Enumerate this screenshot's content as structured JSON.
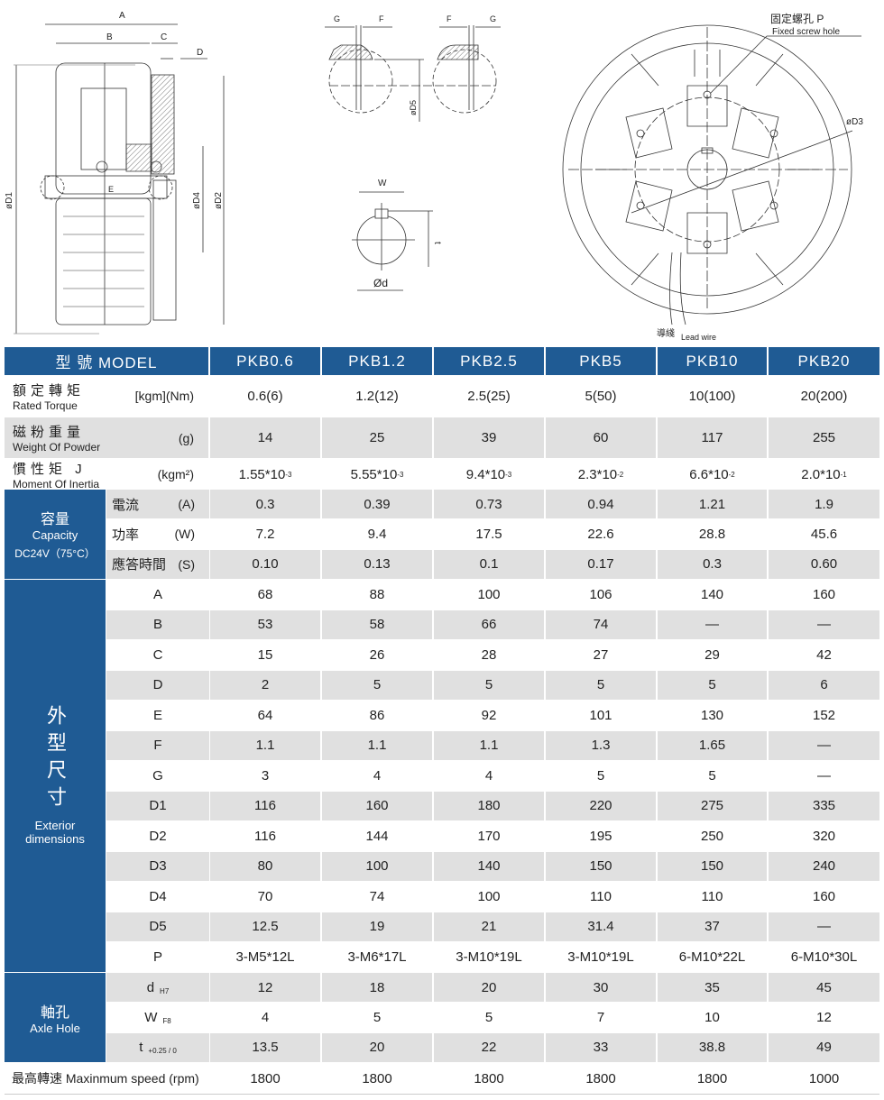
{
  "drawing_labels": {
    "A": "A",
    "B": "B",
    "C": "C",
    "D": "D",
    "E": "E",
    "D1": "øD1",
    "D2": "øD2",
    "D4": "øD4",
    "D5": "øD5",
    "D3": "øD3",
    "G": "G",
    "F": "F",
    "W": "W",
    "t": "t",
    "d": "Ød",
    "fixed_screw_zh": "固定螺孔 P",
    "fixed_screw_en": "Fixed screw hole",
    "lead_wire_zh": "導綫",
    "lead_wire_en": "Lead wire"
  },
  "colors": {
    "header_blue": "#1f5b94",
    "row_grey": "#e0e0e0"
  },
  "table": {
    "header": {
      "label": "型  號 MODEL",
      "models": [
        "PKB0.6",
        "PKB1.2",
        "PKB2.5",
        "PKB5",
        "PKB10",
        "PKB20"
      ]
    },
    "rated_torque": {
      "zh": "額定轉矩",
      "en": "Rated Torque",
      "unit": "[kgm](Nm)",
      "values": [
        "0.6(6)",
        "1.2(12)",
        "2.5(25)",
        "5(50)",
        "10(100)",
        "20(200)"
      ]
    },
    "weight_powder": {
      "zh": "磁粉重量",
      "en": "Weight Of Powder",
      "unit": "(g)",
      "values": [
        "14",
        "25",
        "39",
        "60",
        "117",
        "255"
      ]
    },
    "inertia": {
      "zh": "慣性矩 J",
      "en": "Moment Of Inertia",
      "unit": "(kgm²)",
      "values": [
        {
          "base": "1.55*10",
          "exp": "-3"
        },
        {
          "base": "5.55*10",
          "exp": "-3"
        },
        {
          "base": "9.4*10",
          "exp": "-3"
        },
        {
          "base": "2.3*10",
          "exp": "-2"
        },
        {
          "base": "6.6*10",
          "exp": "-2"
        },
        {
          "base": "2.0*10",
          "exp": "-1"
        }
      ]
    },
    "capacity": {
      "zh": "容量",
      "en": "Capacity",
      "condition": "DC24V（75°C）",
      "rows": [
        {
          "label": "電流",
          "unit": "(A)",
          "values": [
            "0.3",
            "0.39",
            "0.73",
            "0.94",
            "1.21",
            "1.9"
          ]
        },
        {
          "label": "功率",
          "unit": "(W)",
          "values": [
            "7.2",
            "9.4",
            "17.5",
            "22.6",
            "28.8",
            "45.6"
          ]
        },
        {
          "label": "應答時間",
          "unit": "(S)",
          "values": [
            "0.10",
            "0.13",
            "0.1",
            "0.17",
            "0.3",
            "0.60"
          ]
        }
      ]
    },
    "dimensions": {
      "zh": "外型尺寸",
      "en": "Exterior dimensions",
      "rows": [
        {
          "label": "A",
          "values": [
            "68",
            "88",
            "100",
            "106",
            "140",
            "160"
          ]
        },
        {
          "label": "B",
          "values": [
            "53",
            "58",
            "66",
            "74",
            "—",
            "—"
          ]
        },
        {
          "label": "C",
          "values": [
            "15",
            "26",
            "28",
            "27",
            "29",
            "42"
          ]
        },
        {
          "label": "D",
          "values": [
            "2",
            "5",
            "5",
            "5",
            "5",
            "6"
          ]
        },
        {
          "label": "E",
          "values": [
            "64",
            "86",
            "92",
            "101",
            "130",
            "152"
          ]
        },
        {
          "label": "F",
          "values": [
            "1.1",
            "1.1",
            "1.1",
            "1.3",
            "1.65",
            "—"
          ]
        },
        {
          "label": "G",
          "values": [
            "3",
            "4",
            "4",
            "5",
            "5",
            "—"
          ]
        },
        {
          "label": "D1",
          "values": [
            "116",
            "160",
            "180",
            "220",
            "275",
            "335"
          ]
        },
        {
          "label": "D2",
          "values": [
            "116",
            "144",
            "170",
            "195",
            "250",
            "320"
          ]
        },
        {
          "label": "D3",
          "values": [
            "80",
            "100",
            "140",
            "150",
            "150",
            "240"
          ]
        },
        {
          "label": "D4",
          "values": [
            "70",
            "74",
            "100",
            "110",
            "110",
            "160"
          ]
        },
        {
          "label": "D5",
          "values": [
            "12.5",
            "19",
            "21",
            "31.4",
            "37",
            "—"
          ]
        },
        {
          "label": "P",
          "values": [
            "3-M5*12L",
            "3-M6*17L",
            "3-M10*19L",
            "3-M10*19L",
            "6-M10*22L",
            "6-M10*30L"
          ]
        }
      ]
    },
    "axle_hole": {
      "zh": "軸孔",
      "en": "Axle Hole",
      "rows": [
        {
          "label": "d",
          "tol": "H7",
          "values": [
            "12",
            "18",
            "20",
            "30",
            "35",
            "45"
          ]
        },
        {
          "label": "W",
          "tol": "F8",
          "values": [
            "4",
            "5",
            "5",
            "7",
            "10",
            "12"
          ]
        },
        {
          "label": "t",
          "tol": "+0.25 / 0",
          "values": [
            "13.5",
            "20",
            "22",
            "33",
            "38.8",
            "49"
          ]
        }
      ]
    },
    "max_speed": {
      "label": "最高轉速 Maxinmum speed (rpm)",
      "values": [
        "1800",
        "1800",
        "1800",
        "1800",
        "1800",
        "1000"
      ]
    }
  }
}
